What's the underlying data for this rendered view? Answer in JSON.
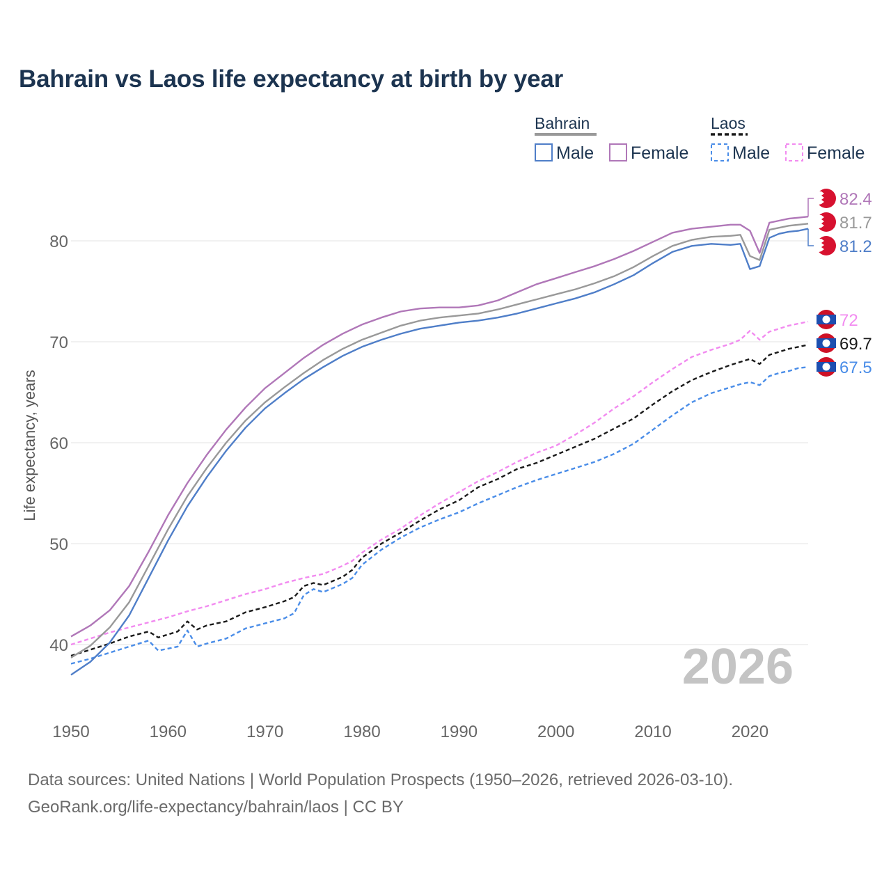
{
  "title": "Bahrain vs Laos life expectancy at birth by year",
  "year_watermark": "2026",
  "source_line1": "Data sources: United Nations | World Population Prospects (1950–2026, retrieved 2026-03-10).",
  "source_line2": "GeoRank.org/life-expectancy/bahrain/laos | CC BY",
  "legend": {
    "bahrain_title": "Bahrain",
    "laos_title": "Laos",
    "male": "Male",
    "female": "Female"
  },
  "colors": {
    "bahrain_total": "#999999",
    "bahrain_male": "#4f7ec8",
    "bahrain_female": "#b077b8",
    "laos_total": "#1a1a1a",
    "laos_male": "#4a8de8",
    "laos_female": "#f28bf0",
    "bahrain_flag": "#d7112f",
    "laos_flag_red": "#ce1126",
    "laos_flag_blue": "#1d4fb0"
  },
  "chart_data": {
    "type": "line",
    "title": "Bahrain vs Laos life expectancy at birth by year",
    "xlabel": "",
    "ylabel": "Life expectancy, years",
    "xlim": [
      1950,
      2026
    ],
    "ylim": [
      35,
      86
    ],
    "x_ticks": [
      1950,
      1960,
      1970,
      1980,
      1990,
      2000,
      2010,
      2020
    ],
    "y_ticks": [
      40,
      50,
      60,
      70,
      80
    ],
    "grid": true,
    "series": [
      {
        "key": "bahrain_total",
        "name": "Bahrain",
        "country": "Bahrain",
        "dashed": false,
        "end_label": "81.7",
        "points": [
          [
            1950,
            38.7
          ],
          [
            1952,
            39.9
          ],
          [
            1954,
            41.7
          ],
          [
            1956,
            44.2
          ],
          [
            1958,
            47.8
          ],
          [
            1960,
            51.4
          ],
          [
            1962,
            54.7
          ],
          [
            1964,
            57.5
          ],
          [
            1966,
            60.0
          ],
          [
            1968,
            62.2
          ],
          [
            1970,
            64.0
          ],
          [
            1972,
            65.5
          ],
          [
            1974,
            66.9
          ],
          [
            1976,
            68.2
          ],
          [
            1978,
            69.3
          ],
          [
            1980,
            70.2
          ],
          [
            1982,
            70.9
          ],
          [
            1984,
            71.6
          ],
          [
            1986,
            72.1
          ],
          [
            1988,
            72.4
          ],
          [
            1990,
            72.6
          ],
          [
            1992,
            72.8
          ],
          [
            1994,
            73.2
          ],
          [
            1996,
            73.7
          ],
          [
            1998,
            74.2
          ],
          [
            2000,
            74.7
          ],
          [
            2002,
            75.2
          ],
          [
            2004,
            75.8
          ],
          [
            2006,
            76.5
          ],
          [
            2008,
            77.4
          ],
          [
            2010,
            78.5
          ],
          [
            2012,
            79.5
          ],
          [
            2014,
            80.1
          ],
          [
            2016,
            80.4
          ],
          [
            2018,
            80.5
          ],
          [
            2019,
            80.6
          ],
          [
            2020,
            78.5
          ],
          [
            2021,
            78.1
          ],
          [
            2022,
            81.1
          ],
          [
            2023,
            81.3
          ],
          [
            2024,
            81.5
          ],
          [
            2025,
            81.6
          ],
          [
            2026,
            81.7
          ]
        ]
      },
      {
        "key": "bahrain_male",
        "name": "Male",
        "country": "Bahrain",
        "dashed": false,
        "end_label": "81.2",
        "points": [
          [
            1950,
            37.0
          ],
          [
            1952,
            38.3
          ],
          [
            1954,
            40.2
          ],
          [
            1956,
            42.9
          ],
          [
            1958,
            46.6
          ],
          [
            1960,
            50.3
          ],
          [
            1962,
            53.7
          ],
          [
            1964,
            56.6
          ],
          [
            1966,
            59.2
          ],
          [
            1968,
            61.5
          ],
          [
            1970,
            63.4
          ],
          [
            1972,
            64.9
          ],
          [
            1974,
            66.3
          ],
          [
            1976,
            67.5
          ],
          [
            1978,
            68.6
          ],
          [
            1980,
            69.5
          ],
          [
            1982,
            70.2
          ],
          [
            1984,
            70.8
          ],
          [
            1986,
            71.3
          ],
          [
            1988,
            71.6
          ],
          [
            1990,
            71.9
          ],
          [
            1992,
            72.1
          ],
          [
            1994,
            72.4
          ],
          [
            1996,
            72.8
          ],
          [
            1998,
            73.3
          ],
          [
            2000,
            73.8
          ],
          [
            2002,
            74.3
          ],
          [
            2004,
            74.9
          ],
          [
            2006,
            75.7
          ],
          [
            2008,
            76.6
          ],
          [
            2010,
            77.8
          ],
          [
            2012,
            78.9
          ],
          [
            2014,
            79.5
          ],
          [
            2016,
            79.7
          ],
          [
            2018,
            79.6
          ],
          [
            2019,
            79.7
          ],
          [
            2020,
            77.2
          ],
          [
            2021,
            77.5
          ],
          [
            2022,
            80.3
          ],
          [
            2023,
            80.7
          ],
          [
            2024,
            80.9
          ],
          [
            2025,
            81.0
          ],
          [
            2026,
            81.2
          ]
        ]
      },
      {
        "key": "bahrain_female",
        "name": "Female",
        "country": "Bahrain",
        "dashed": false,
        "end_label": "82.4",
        "points": [
          [
            1950,
            40.8
          ],
          [
            1952,
            41.9
          ],
          [
            1954,
            43.4
          ],
          [
            1956,
            45.8
          ],
          [
            1958,
            49.2
          ],
          [
            1960,
            52.8
          ],
          [
            1962,
            56.0
          ],
          [
            1964,
            58.8
          ],
          [
            1966,
            61.3
          ],
          [
            1968,
            63.5
          ],
          [
            1970,
            65.4
          ],
          [
            1972,
            66.9
          ],
          [
            1974,
            68.4
          ],
          [
            1976,
            69.7
          ],
          [
            1978,
            70.8
          ],
          [
            1980,
            71.7
          ],
          [
            1982,
            72.4
          ],
          [
            1984,
            73.0
          ],
          [
            1986,
            73.3
          ],
          [
            1988,
            73.4
          ],
          [
            1990,
            73.4
          ],
          [
            1992,
            73.6
          ],
          [
            1994,
            74.1
          ],
          [
            1996,
            74.9
          ],
          [
            1998,
            75.7
          ],
          [
            2000,
            76.3
          ],
          [
            2002,
            76.9
          ],
          [
            2004,
            77.5
          ],
          [
            2006,
            78.2
          ],
          [
            2008,
            79.0
          ],
          [
            2010,
            79.9
          ],
          [
            2012,
            80.8
          ],
          [
            2014,
            81.2
          ],
          [
            2016,
            81.4
          ],
          [
            2018,
            81.6
          ],
          [
            2019,
            81.6
          ],
          [
            2020,
            81.0
          ],
          [
            2021,
            78.8
          ],
          [
            2022,
            81.8
          ],
          [
            2023,
            82.0
          ],
          [
            2024,
            82.2
          ],
          [
            2025,
            82.3
          ],
          [
            2026,
            82.4
          ]
        ]
      },
      {
        "key": "laos_total",
        "name": "Laos",
        "country": "Laos",
        "dashed": true,
        "end_label": "69.7",
        "points": [
          [
            1950,
            38.9
          ],
          [
            1952,
            39.5
          ],
          [
            1954,
            40.1
          ],
          [
            1956,
            40.8
          ],
          [
            1958,
            41.3
          ],
          [
            1959,
            40.7
          ],
          [
            1960,
            41.0
          ],
          [
            1961,
            41.3
          ],
          [
            1962,
            42.3
          ],
          [
            1963,
            41.5
          ],
          [
            1964,
            41.9
          ],
          [
            1966,
            42.3
          ],
          [
            1968,
            43.2
          ],
          [
            1970,
            43.7
          ],
          [
            1972,
            44.3
          ],
          [
            1973,
            44.7
          ],
          [
            1974,
            45.8
          ],
          [
            1975,
            46.1
          ],
          [
            1976,
            45.9
          ],
          [
            1978,
            46.7
          ],
          [
            1979,
            47.4
          ],
          [
            1980,
            48.6
          ],
          [
            1982,
            50.0
          ],
          [
            1984,
            51.1
          ],
          [
            1986,
            52.3
          ],
          [
            1988,
            53.4
          ],
          [
            1990,
            54.3
          ],
          [
            1992,
            55.6
          ],
          [
            1994,
            56.4
          ],
          [
            1996,
            57.4
          ],
          [
            1998,
            58.0
          ],
          [
            2000,
            58.8
          ],
          [
            2002,
            59.6
          ],
          [
            2004,
            60.4
          ],
          [
            2006,
            61.4
          ],
          [
            2008,
            62.4
          ],
          [
            2010,
            63.8
          ],
          [
            2012,
            65.1
          ],
          [
            2014,
            66.2
          ],
          [
            2016,
            67.0
          ],
          [
            2018,
            67.7
          ],
          [
            2019,
            68.0
          ],
          [
            2020,
            68.3
          ],
          [
            2021,
            67.8
          ],
          [
            2022,
            68.7
          ],
          [
            2023,
            69.0
          ],
          [
            2024,
            69.3
          ],
          [
            2025,
            69.5
          ],
          [
            2026,
            69.7
          ]
        ]
      },
      {
        "key": "laos_male",
        "name": "Male",
        "country": "Laos",
        "dashed": true,
        "end_label": "67.5",
        "points": [
          [
            1950,
            38.1
          ],
          [
            1952,
            38.6
          ],
          [
            1954,
            39.2
          ],
          [
            1956,
            39.8
          ],
          [
            1958,
            40.4
          ],
          [
            1959,
            39.4
          ],
          [
            1960,
            39.6
          ],
          [
            1961,
            39.8
          ],
          [
            1962,
            41.4
          ],
          [
            1963,
            39.8
          ],
          [
            1964,
            40.1
          ],
          [
            1966,
            40.6
          ],
          [
            1968,
            41.6
          ],
          [
            1970,
            42.1
          ],
          [
            1972,
            42.6
          ],
          [
            1973,
            43.1
          ],
          [
            1974,
            44.9
          ],
          [
            1975,
            45.5
          ],
          [
            1976,
            45.2
          ],
          [
            1978,
            46.0
          ],
          [
            1979,
            46.6
          ],
          [
            1980,
            47.9
          ],
          [
            1982,
            49.4
          ],
          [
            1984,
            50.6
          ],
          [
            1986,
            51.6
          ],
          [
            1988,
            52.4
          ],
          [
            1990,
            53.1
          ],
          [
            1992,
            54.0
          ],
          [
            1994,
            54.8
          ],
          [
            1996,
            55.6
          ],
          [
            1998,
            56.3
          ],
          [
            2000,
            56.9
          ],
          [
            2002,
            57.5
          ],
          [
            2004,
            58.1
          ],
          [
            2006,
            58.9
          ],
          [
            2008,
            59.9
          ],
          [
            2010,
            61.3
          ],
          [
            2012,
            62.7
          ],
          [
            2014,
            64.0
          ],
          [
            2016,
            64.9
          ],
          [
            2018,
            65.5
          ],
          [
            2019,
            65.8
          ],
          [
            2020,
            66.0
          ],
          [
            2021,
            65.7
          ],
          [
            2022,
            66.6
          ],
          [
            2023,
            66.9
          ],
          [
            2024,
            67.1
          ],
          [
            2025,
            67.4
          ],
          [
            2026,
            67.5
          ]
        ]
      },
      {
        "key": "laos_female",
        "name": "Female",
        "country": "Laos",
        "dashed": true,
        "end_label": "72",
        "points": [
          [
            1950,
            40.0
          ],
          [
            1952,
            40.6
          ],
          [
            1954,
            41.2
          ],
          [
            1956,
            41.7
          ],
          [
            1958,
            42.2
          ],
          [
            1960,
            42.7
          ],
          [
            1962,
            43.3
          ],
          [
            1964,
            43.8
          ],
          [
            1966,
            44.4
          ],
          [
            1968,
            45.0
          ],
          [
            1970,
            45.5
          ],
          [
            1972,
            46.1
          ],
          [
            1974,
            46.6
          ],
          [
            1976,
            47.0
          ],
          [
            1978,
            47.8
          ],
          [
            1979,
            48.3
          ],
          [
            1980,
            49.1
          ],
          [
            1982,
            50.4
          ],
          [
            1984,
            51.5
          ],
          [
            1986,
            52.8
          ],
          [
            1988,
            54.0
          ],
          [
            1990,
            55.1
          ],
          [
            1992,
            56.2
          ],
          [
            1994,
            57.1
          ],
          [
            1996,
            58.1
          ],
          [
            1998,
            59.0
          ],
          [
            2000,
            59.7
          ],
          [
            2002,
            60.8
          ],
          [
            2004,
            62.0
          ],
          [
            2006,
            63.4
          ],
          [
            2008,
            64.6
          ],
          [
            2010,
            66.0
          ],
          [
            2012,
            67.3
          ],
          [
            2014,
            68.5
          ],
          [
            2016,
            69.2
          ],
          [
            2018,
            69.8
          ],
          [
            2019,
            70.2
          ],
          [
            2020,
            71.1
          ],
          [
            2021,
            70.2
          ],
          [
            2022,
            71.0
          ],
          [
            2023,
            71.3
          ],
          [
            2024,
            71.6
          ],
          [
            2025,
            71.8
          ],
          [
            2026,
            72.0
          ]
        ]
      }
    ]
  }
}
